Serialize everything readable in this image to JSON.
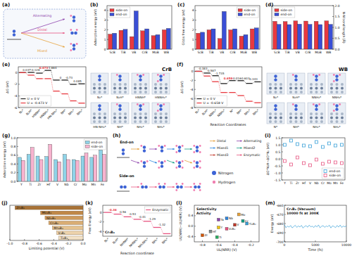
{
  "chart_data": [
    {
      "type": "bar",
      "title": "(b)",
      "y_label": "Adsorption energy (eV)",
      "categories": [
        "ScB",
        "TiB",
        "VB",
        "CrB",
        "MoB",
        "WB"
      ],
      "series": [
        {
          "name": "side-on",
          "color": "#e8393f",
          "values": [
            1.55,
            1.95,
            1.3,
            1.9,
            1.4,
            2.0
          ]
        },
        {
          "name": "end-on",
          "color": "#3a4fd6",
          "values": [
            1.65,
            2.05,
            3.95,
            2.1,
            1.5,
            2.15
          ]
        }
      ],
      "ylim": [
        0,
        4.5
      ],
      "yticks": [
        0,
        1,
        2,
        3,
        4
      ],
      "legend": "top-left"
    },
    {
      "type": "bar",
      "title": "(c)",
      "y_label": "Gibbs free energy (eV)",
      "categories": [
        "ScB",
        "TiB",
        "VB",
        "CrB",
        "MoB",
        "WB"
      ],
      "series": [
        {
          "name": "side-on",
          "color": "#e8393f",
          "values": [
            1.65,
            2.0,
            1.1,
            2.0,
            1.35,
            2.1
          ]
        },
        {
          "name": "end-on",
          "color": "#3a4fd6",
          "values": [
            1.75,
            2.1,
            3.9,
            2.1,
            1.5,
            2.2
          ]
        }
      ],
      "ylim": [
        0,
        4.5
      ],
      "yticks": [
        0,
        1,
        2,
        3,
        4
      ],
      "legend": "top-right"
    },
    {
      "type": "bar",
      "title": "(d)",
      "y2_label": "N-N bond length (Å)",
      "categories": [
        "ScB",
        "TiB",
        "VB",
        "CrB",
        "MoB",
        "WB"
      ],
      "series": [
        {
          "name": "side-on",
          "color": "#e8393f",
          "axis": "y2",
          "values": [
            1.28,
            1.27,
            1.3,
            1.29,
            1.28,
            1.3
          ]
        },
        {
          "name": "end-on",
          "color": "#3a4fd6",
          "axis": "y2",
          "values": [
            1.14,
            1.13,
            1.15,
            1.14,
            1.13,
            1.14
          ]
        }
      ],
      "y2lim": [
        0,
        2.0
      ],
      "y2ticks": [
        {
          "value": 0,
          "label": "0.0"
        },
        {
          "value": 0.5,
          "label": "0.5"
        },
        {
          "value": 1,
          "label": "1.0"
        },
        {
          "value": 1.5,
          "label": "1.5"
        },
        {
          "value": 2,
          "label": "2.0"
        }
      ],
      "legend": "top-left"
    },
    {
      "type": "energy_profile",
      "title": "(e)",
      "y_label": "ΔG (eV)",
      "categories": [
        "N₂*",
        "N₂H*",
        "HNNH*",
        "HNNH₂*",
        "HN-NH₃*",
        "NH*",
        "NH₂*",
        "NH₃*"
      ],
      "series": [
        {
          "name": "U = 0 V",
          "color": "#222222",
          "values": [
            0,
            0.037,
            -0.091,
            0.382,
            -1.282,
            -1.282,
            -2.012,
            -1.927
          ]
        },
        {
          "name": "U = -0.473 V",
          "color": "#e8393f",
          "values": [
            0,
            -0.436,
            -1.037,
            -1.037,
            -3.174,
            -3.647,
            -4.85,
            -5.238
          ]
        }
      ],
      "step_labels": [
        "0.037",
        "-0.128",
        "0.473",
        "-1.664",
        "0",
        "-0.73",
        "0.085"
      ],
      "ylim": [
        -6,
        1
      ],
      "yticks": [
        -6,
        -4,
        -2,
        0
      ],
      "legend": "bottom-left"
    },
    {
      "type": "energy_profile",
      "title": "(f)",
      "y_label": "ΔG (eV)",
      "x_label": "Reaction Coordinates",
      "categories": [
        "N₂*",
        "N₂H*",
        "NNH₂*",
        "NNH₃*",
        "N*",
        "NH*",
        "NH₂*",
        "NH₃*"
      ],
      "series": [
        {
          "name": "U = 0 V",
          "color": "#222222",
          "values": [
            0,
            -0.383,
            -0.97,
            -2.705,
            -2.047,
            -2.063,
            -2.666,
            -2.323
          ]
        },
        {
          "name": "U = -0.658 V",
          "color": "#e8393f",
          "values": [
            0,
            -1.041,
            -2.286,
            -4.679,
            -4.679,
            -5.353,
            -6.614,
            -6.929
          ]
        }
      ],
      "step_labels": [
        "-0.383",
        "-0.587",
        "-1.735",
        "0.658",
        "-0.016",
        "-0.603",
        "0.343"
      ],
      "ylim": [
        -8,
        1
      ],
      "yticks": [
        -8,
        -6,
        -4,
        -2,
        0
      ],
      "legend": "bottom-left"
    },
    {
      "type": "bar",
      "title": "(g)",
      "y_label": "Adsorption energy (eV)",
      "categories": [
        "Y",
        "Ti",
        "Zr",
        "Hf",
        "V",
        "Nb",
        "Cr",
        "Mo",
        "Mn",
        "Fe"
      ],
      "series": [
        {
          "name": "end-on",
          "color": "#8fd3e8",
          "values": [
            0.55,
            0.62,
            0.58,
            0.57,
            0.5,
            0.62,
            0.5,
            0.58,
            0.55,
            0.72
          ]
        },
        {
          "name": "side-on",
          "color": "#f7b3cf",
          "values": [
            0.48,
            0.78,
            0.5,
            0.85,
            0.45,
            0.5,
            0.48,
            0.65,
            0.6,
            0.62
          ]
        }
      ],
      "ylim": [
        0,
        1.0
      ],
      "yticks": [
        {
          "value": 0,
          "label": "0.0"
        },
        0.2,
        0.4,
        0.6,
        0.8,
        {
          "value": 1,
          "label": "1.0"
        }
      ],
      "legend": "top-right"
    },
    {
      "type": "scatter",
      "title": "(i)",
      "y_label": "ΔG*N₂H−ΔG*N₂ (eV)",
      "categories": [
        "Y",
        "Ti",
        "Zr",
        "Hf",
        "V",
        "Nb",
        "Cr",
        "Mo",
        "Mn",
        "Fe"
      ],
      "series": [
        {
          "name": "end-on",
          "color": "#3aa0d8",
          "marker": "square",
          "values": [
            1.0,
            1.3,
            1.05,
            0.95,
            0.9,
            1.2,
            0.85,
            1.1,
            0.95,
            1.0
          ]
        },
        {
          "name": "side-on",
          "color": "#e75480",
          "marker": "square",
          "values": [
            -0.15,
            -0.4,
            0.1,
            -0.3,
            -0.45,
            -0.05,
            -0.35,
            -0.2,
            -0.25,
            -0.3
          ]
        }
      ],
      "ylim": [
        -1.5,
        1.5
      ],
      "yticks": [
        -1.5,
        {
          "value": -1,
          "label": "-1.0"
        },
        -0.5,
        {
          "value": 0,
          "label": "0.0"
        },
        0.5,
        {
          "value": 1,
          "label": "1.0"
        },
        1.5
      ],
      "legend": "bottom-right"
    },
    {
      "type": "bar",
      "title": "(j)",
      "orientation": "horizontal",
      "x_label": "Limiting potential (V)",
      "categories": [
        "Ti₃B₄",
        "V₃B₄",
        "Mn₃B₄",
        "Cr₃B₄",
        "Nb₃B₄",
        "Mo₃B₄",
        "Zr₃B₄"
      ],
      "values": [
        -0.33,
        -0.36,
        -0.42,
        -0.47,
        -0.52,
        -0.58,
        -0.93
      ],
      "colors": [
        "#f3e2c7",
        "#ecd2ab",
        "#e4c28f",
        "#d9ad73",
        "#cd9a5c",
        "#bf8747",
        "#a87236"
      ],
      "xlim": [
        -1.0,
        0
      ],
      "xticks": [
        {
          "value": -1,
          "label": "-1.0"
        },
        -0.8,
        -0.6,
        -0.4,
        -0.2,
        {
          "value": 0,
          "label": "0.0"
        }
      ]
    },
    {
      "type": "energy_profile",
      "title": "(k)",
      "y_label": "Free Energy (eV)",
      "x_label": "Reaction coordinate",
      "annotations": [
        "Cr₃B₄"
      ],
      "categories": [
        "N₂*",
        "N₂H*",
        "NHNH*",
        "NHNH₂*",
        "NH₂NH₂*",
        "NH₂*",
        "NH₃*"
      ],
      "series": [
        {
          "name": "Enzymatic",
          "color": "#e75480",
          "values": [
            0,
            -0.36,
            -0.92,
            -1.45,
            -1.86,
            -3.15,
            -4.47
          ]
        }
      ],
      "step_labels": [
        "-0.36",
        "-0.56",
        "-0.53",
        "-0.41",
        "-1.29",
        "-1.32"
      ],
      "ylim": [
        -5,
        1.5
      ],
      "yticks": [
        -4,
        -2,
        0
      ],
      "legend": "top-right"
    },
    {
      "type": "scatter",
      "title": "(l)",
      "x_label": "UL(NRR) (V)",
      "y_label": "UL(NRR)−UL(HER) (V)",
      "annotations": [
        "Selectivity",
        "Activity"
      ],
      "x": [
        -0.35,
        -0.5,
        -0.3,
        -0.6,
        -0.4,
        -0.6,
        -0.25,
        -0.5,
        -0.7,
        -0.62,
        -0.8
      ],
      "values": [
        0.45,
        0.3,
        0.2,
        0.25,
        0.05,
        -0.05,
        0.1,
        -0.1,
        -0.2,
        -0.42,
        -0.35
      ],
      "point_labels": [
        "Mo",
        "Nb",
        "Cr",
        "Ta",
        "V",
        "Y",
        "Ti₃B₄",
        "V₂B₃",
        "Hf",
        "Ti",
        "Zr"
      ],
      "colors": [
        "#e6a23c",
        "#2e86de",
        "#16a085",
        "#8e44ad",
        "#c0392b",
        "#f1c40f",
        "#3aa0d8",
        "#e75480",
        "#7f8c8d",
        "#27ae60",
        "#d35400"
      ],
      "marker": "square",
      "xlim": [
        -0.9,
        -0.1
      ],
      "xticks": [
        -0.8,
        -0.6,
        -0.4,
        -0.2
      ],
      "ylim": [
        -0.6,
        0.8
      ],
      "yticks": [
        -0.4,
        {
          "value": 0,
          "label": "0.0"
        },
        0.4
      ]
    },
    {
      "type": "line",
      "title": "(m)",
      "x_label": "Time (fs)",
      "y_label": "Energy (eV)",
      "annotations": [
        "Cr₃B₄ (Vacuum)",
        "10000 fs at 300K"
      ],
      "x": [
        0,
        250,
        500,
        750,
        1000,
        1250,
        1500,
        1750,
        2000,
        2250,
        2500,
        2750,
        3000,
        3250,
        3500,
        3750,
        4000,
        4250,
        4500,
        4750,
        5000,
        5250,
        5500,
        5750,
        6000,
        6250,
        6500,
        6750,
        7000,
        7250,
        7500,
        7750,
        8000,
        8250,
        8500,
        8750,
        9000,
        9250,
        9500,
        9750,
        10000
      ],
      "series": [
        {
          "name": "Cr₃B₄",
          "color": "#3aa0d8",
          "values": [
            -681.2,
            -684.5,
            -682.8,
            -683.9,
            -682.1,
            -684.7,
            -683.3,
            -681.9,
            -684.2,
            -682.6,
            -683.8,
            -682.0,
            -684.9,
            -683.1,
            -682.4,
            -684.0,
            -681.7,
            -683.6,
            -682.9,
            -684.3,
            -682.2,
            -683.7,
            -681.5,
            -684.6,
            -683.0,
            -682.3,
            -684.1,
            -682.7,
            -683.4,
            -681.8,
            -684.8,
            -682.5,
            -683.2,
            -684.4,
            -682.1,
            -683.9,
            -681.6,
            -684.2,
            -682.8,
            -683.5,
            -682.6
          ]
        }
      ],
      "xlim": [
        0,
        10000
      ],
      "xticks": [
        0,
        5000,
        10000
      ],
      "ylim": [
        -700,
        -660
      ],
      "yticks": [
        -700,
        -690,
        -680,
        -670,
        -660
      ]
    }
  ],
  "diagrams": {
    "a": {
      "title": "(a)",
      "labels": [
        "Alternating",
        "Distal",
        "Mixed"
      ]
    },
    "e_structures": {
      "title": "CrB",
      "labels": [
        "N₂*",
        "N₂H*",
        "HNNH*",
        "HNNH₂*",
        "HN-NH₃*",
        "NH*",
        "NH₂*",
        "NH₃*"
      ]
    },
    "f_structures": {
      "title": "WB",
      "labels": [
        "N₂*",
        "N₂H*",
        "NNH₂*",
        "NNH₃*",
        "N*",
        "NH*",
        "NH₂*",
        "NH₃*"
      ]
    },
    "h": {
      "title": "(h)",
      "modes": [
        "End-on",
        "Side-on"
      ],
      "pathways": [
        "Distal",
        "Alternating",
        "Mixed1",
        "Mixed2",
        "Mixed3",
        "Enzymatic"
      ],
      "atoms": [
        "Nitrogen",
        "Hydrogen"
      ]
    }
  }
}
